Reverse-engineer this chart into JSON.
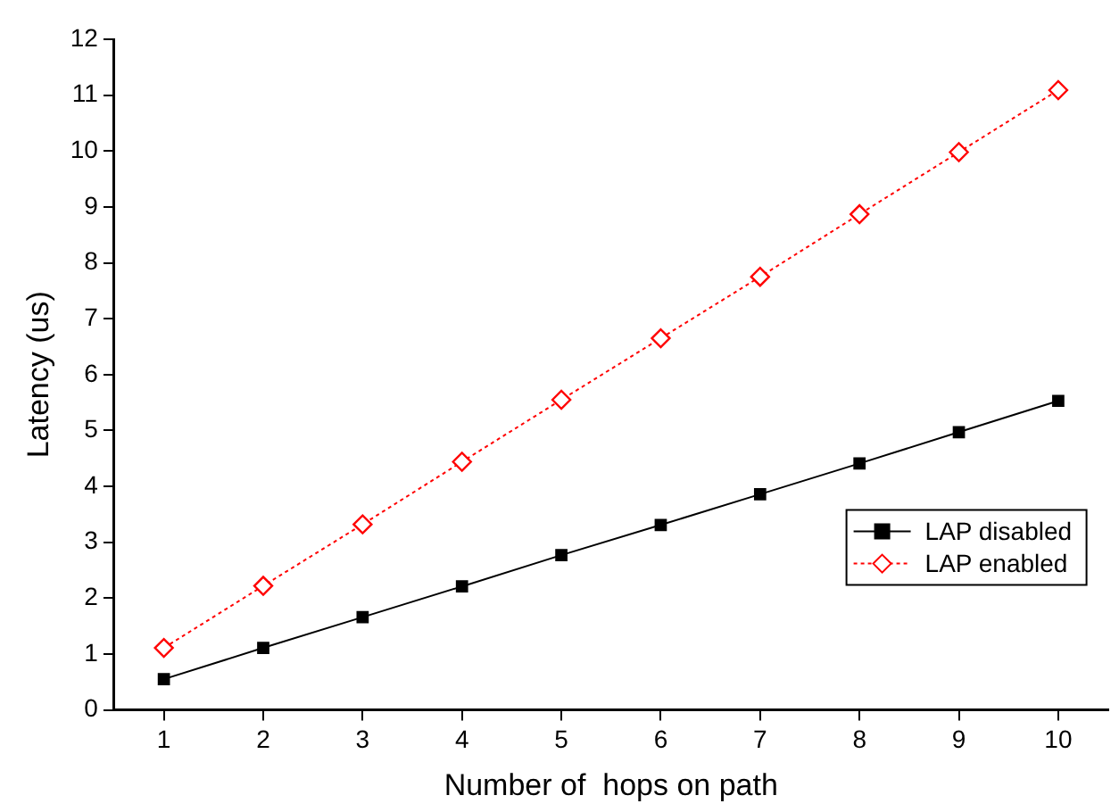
{
  "chart_data": {
    "type": "line",
    "xlabel": "Number of  hops on path",
    "ylabel": "Latency (us)",
    "x": [
      1,
      2,
      3,
      4,
      5,
      6,
      7,
      8,
      9,
      10
    ],
    "series": [
      {
        "name": "LAP disabled",
        "color": "#000000",
        "marker": "square",
        "line_style": "solid",
        "values": [
          0.55,
          1.11,
          1.66,
          2.21,
          2.77,
          3.31,
          3.86,
          4.41,
          4.97,
          5.53
        ]
      },
      {
        "name": "LAP enabled",
        "color": "#ff0000",
        "marker": "diamond",
        "line_style": "dotted",
        "values": [
          1.11,
          2.22,
          3.32,
          4.44,
          5.55,
          6.65,
          7.75,
          8.87,
          9.98,
          11.09
        ]
      }
    ],
    "xlim": [
      0.5,
      10.5
    ],
    "xticks": [
      1,
      2,
      3,
      4,
      5,
      6,
      7,
      8,
      9,
      10
    ],
    "ylim": [
      0,
      12
    ],
    "yticks": [
      0,
      1,
      2,
      3,
      4,
      5,
      6,
      7,
      8,
      9,
      10,
      11,
      12
    ],
    "grid": false,
    "legend": "bottom right"
  }
}
